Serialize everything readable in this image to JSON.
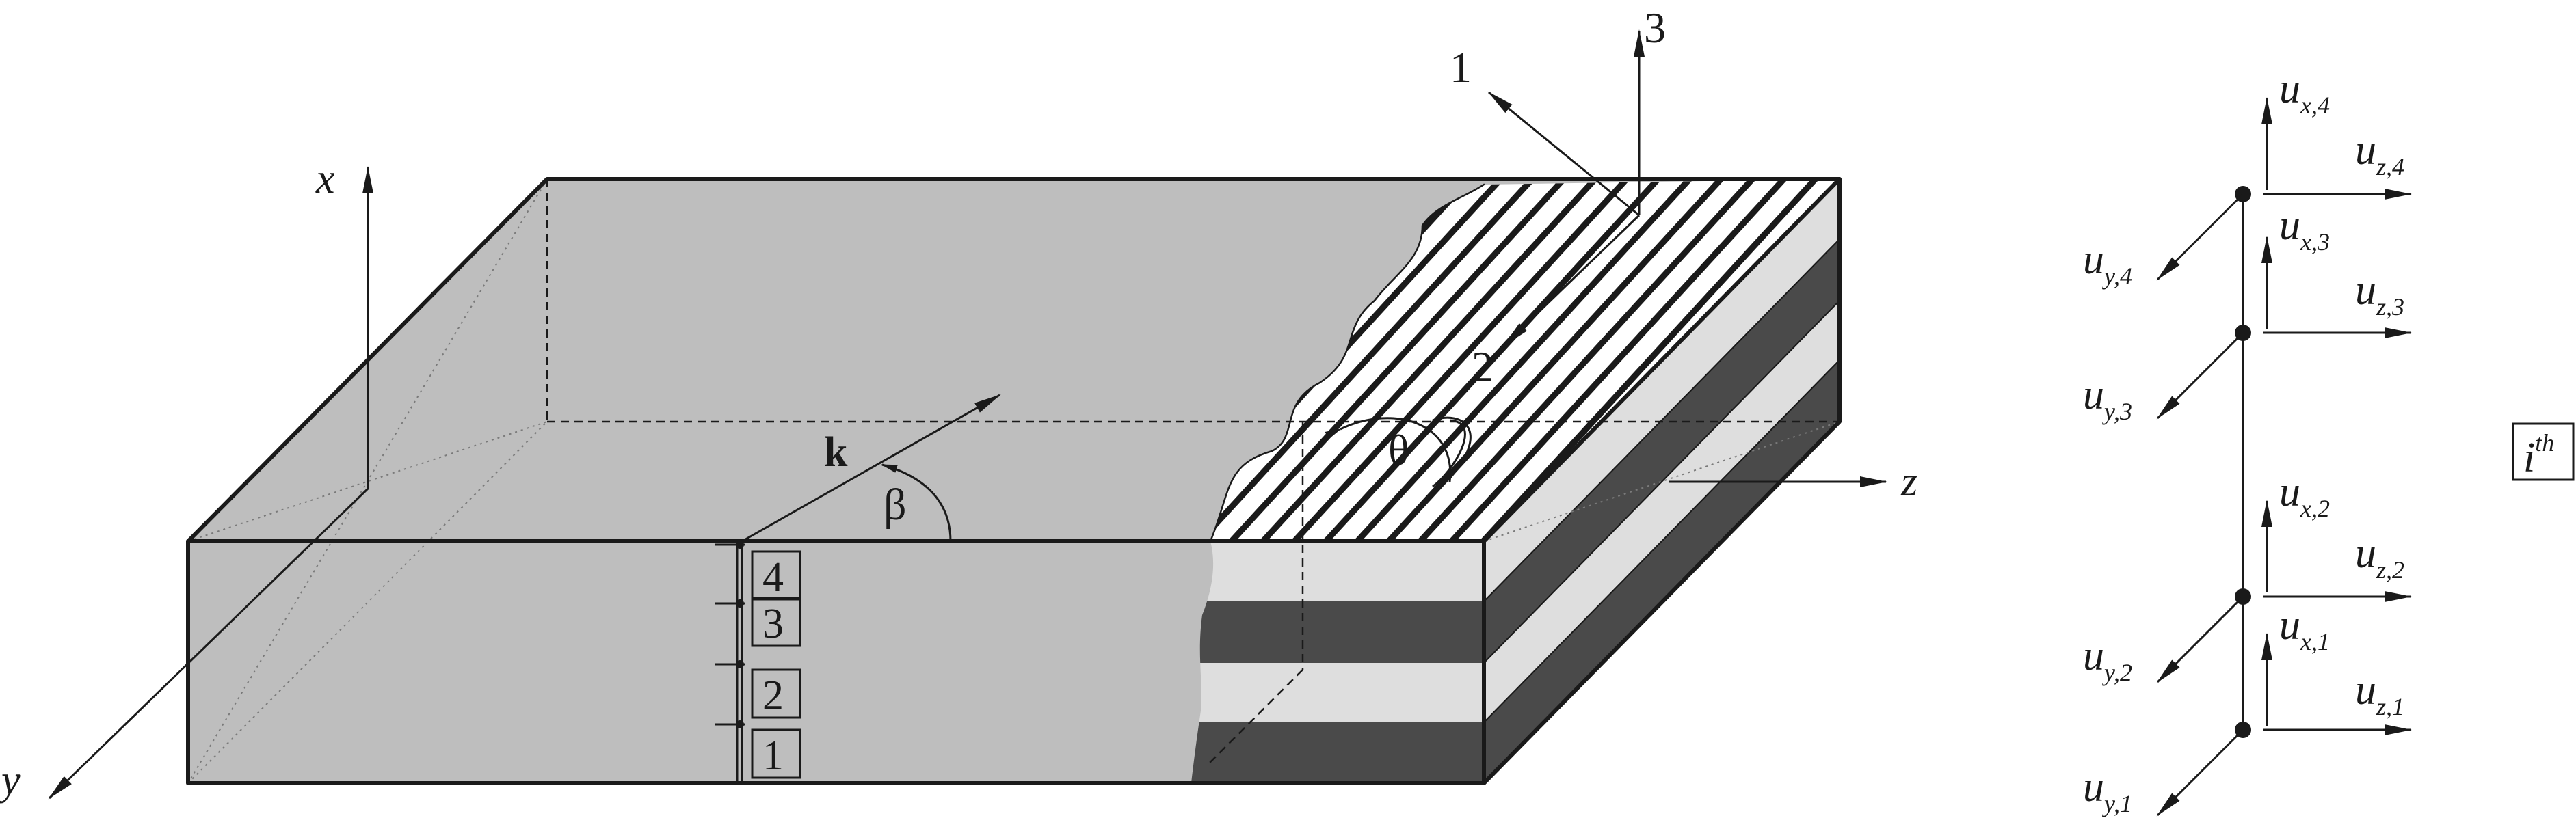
{
  "colors": {
    "gray_face": "#bebebe",
    "dark_layer": "#4a4a4a",
    "light_layer": "#dedede",
    "ink": "#1a1a1a",
    "white": "#ffffff"
  },
  "axes": {
    "x": "x",
    "y": "y",
    "z": "z"
  },
  "material_axes": {
    "one": "1",
    "two": "2",
    "three": "3"
  },
  "wave": {
    "vector": "k",
    "angle": "β"
  },
  "fiber_angle": "θ",
  "sublayers": [
    "1",
    "2",
    "3",
    "4"
  ],
  "layer_label": {
    "base": "i",
    "sup": "th"
  },
  "dofs": [
    {
      "base": "u",
      "sub": "x,4"
    },
    {
      "base": "u",
      "sub": "z,4"
    },
    {
      "base": "u",
      "sub": "y,4"
    },
    {
      "base": "u",
      "sub": "x,3"
    },
    {
      "base": "u",
      "sub": "z,3"
    },
    {
      "base": "u",
      "sub": "y,3"
    },
    {
      "base": "u",
      "sub": "x,2"
    },
    {
      "base": "u",
      "sub": "z,2"
    },
    {
      "base": "u",
      "sub": "y,2"
    },
    {
      "base": "u",
      "sub": "x,1"
    },
    {
      "base": "u",
      "sub": "z,1"
    },
    {
      "base": "u",
      "sub": "y,1"
    }
  ]
}
